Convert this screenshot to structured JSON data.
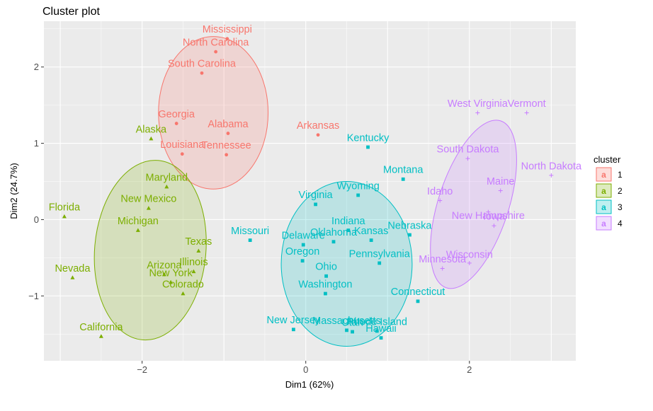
{
  "chart_data": {
    "type": "scatter",
    "title": "Cluster plot",
    "xlabel": "Dim1 (62%)",
    "ylabel": "Dim2 (24.7%)",
    "xlim": [
      -3.2,
      3.3
    ],
    "ylim": [
      -1.85,
      2.6
    ],
    "xticks": [
      -2,
      0,
      2
    ],
    "yticks": [
      -1,
      0,
      1,
      2
    ],
    "grid": true,
    "legend": {
      "title": "cluster",
      "position": "right",
      "entries": [
        {
          "label": "1",
          "glyph": "a",
          "color": "#F8766D",
          "fill": "#F8766D"
        },
        {
          "label": "2",
          "glyph": "a",
          "color": "#7CAE00",
          "fill": "#7CAE00"
        },
        {
          "label": "3",
          "glyph": "a",
          "color": "#00BFC4",
          "fill": "#00BFC4"
        },
        {
          "label": "4",
          "glyph": "a",
          "color": "#C77CFF",
          "fill": "#C77CFF"
        }
      ]
    },
    "ellipses": [
      {
        "cluster": "1",
        "cx": -1.13,
        "cy": 1.4,
        "rx": 0.67,
        "ry": 1.0,
        "angle": 0
      },
      {
        "cluster": "2",
        "cx": -1.9,
        "cy": -0.4,
        "rx": 0.68,
        "ry": 1.18,
        "angle": 5
      },
      {
        "cluster": "3",
        "cx": 0.5,
        "cy": -0.58,
        "rx": 0.8,
        "ry": 1.08,
        "angle": 0
      },
      {
        "cluster": "4",
        "cx": 2.05,
        "cy": 0.2,
        "rx": 0.43,
        "ry": 1.15,
        "angle": 18
      }
    ],
    "series": [
      {
        "name": "1",
        "color": "#F8766D",
        "marker": "circle",
        "points": [
          {
            "label": "Mississippi",
            "x": -0.96,
            "y": 2.37,
            "lx": -0.96,
            "ly": 2.45
          },
          {
            "label": "North Carolina",
            "x": -1.1,
            "y": 2.2,
            "lx": -1.1,
            "ly": 2.28
          },
          {
            "label": "South Carolina",
            "x": -1.27,
            "y": 1.92,
            "lx": -1.27,
            "ly": 2.0
          },
          {
            "label": "Georgia",
            "x": -1.58,
            "y": 1.26,
            "lx": -1.58,
            "ly": 1.34
          },
          {
            "label": "Alabama",
            "x": -0.95,
            "y": 1.13,
            "lx": -0.95,
            "ly": 1.21
          },
          {
            "label": "Arkansas",
            "x": 0.15,
            "y": 1.11,
            "lx": 0.15,
            "ly": 1.19
          },
          {
            "label": "Louisiana",
            "x": -1.51,
            "y": 0.86,
            "lx": -1.51,
            "ly": 0.94
          },
          {
            "label": "Tennessee",
            "x": -0.97,
            "y": 0.85,
            "lx": -0.97,
            "ly": 0.93
          }
        ]
      },
      {
        "name": "2",
        "color": "#7CAE00",
        "marker": "triangle",
        "points": [
          {
            "label": "Alaska",
            "x": -1.89,
            "y": 1.06,
            "lx": -1.89,
            "ly": 1.14
          },
          {
            "label": "Maryland",
            "x": -1.7,
            "y": 0.43,
            "lx": -1.7,
            "ly": 0.51
          },
          {
            "label": "Florida",
            "x": -2.95,
            "y": 0.04,
            "lx": -2.95,
            "ly": 0.12
          },
          {
            "label": "New Mexico",
            "x": -1.92,
            "y": 0.15,
            "lx": -1.92,
            "ly": 0.23
          },
          {
            "label": "Michigan",
            "x": -2.05,
            "y": -0.14,
            "lx": -2.05,
            "ly": -0.06
          },
          {
            "label": "Texas",
            "x": -1.31,
            "y": -0.41,
            "lx": -1.31,
            "ly": -0.33
          },
          {
            "label": "Illinois",
            "x": -1.37,
            "y": -0.68,
            "lx": -1.37,
            "ly": -0.6
          },
          {
            "label": "Nevada",
            "x": -2.85,
            "y": -0.76,
            "lx": -2.85,
            "ly": -0.68
          },
          {
            "label": "Arizona",
            "x": -1.73,
            "y": -0.72,
            "lx": -1.73,
            "ly": -0.64
          },
          {
            "label": "New York",
            "x": -1.65,
            "y": -0.82,
            "lx": -1.65,
            "ly": -0.74
          },
          {
            "label": "Colorado",
            "x": -1.5,
            "y": -0.97,
            "lx": -1.5,
            "ly": -0.89
          },
          {
            "label": "California",
            "x": -2.5,
            "y": -1.53,
            "lx": -2.5,
            "ly": -1.45
          }
        ]
      },
      {
        "name": "3",
        "color": "#00BFC4",
        "marker": "square",
        "points": [
          {
            "label": "Kentucky",
            "x": 0.76,
            "y": 0.95,
            "lx": 0.76,
            "ly": 1.03
          },
          {
            "label": "Montana",
            "x": 1.19,
            "y": 0.53,
            "lx": 1.19,
            "ly": 0.61
          },
          {
            "label": "Wyoming",
            "x": 0.64,
            "y": 0.32,
            "lx": 0.64,
            "ly": 0.4
          },
          {
            "label": "Virginia",
            "x": 0.12,
            "y": 0.2,
            "lx": 0.12,
            "ly": 0.28
          },
          {
            "label": "Indiana",
            "x": 0.52,
            "y": -0.14,
            "lx": 0.52,
            "ly": -0.06
          },
          {
            "label": "Missouri",
            "x": -0.68,
            "y": -0.27,
            "lx": -0.68,
            "ly": -0.19
          },
          {
            "label": "Delaware",
            "x": -0.03,
            "y": -0.33,
            "lx": -0.03,
            "ly": -0.25
          },
          {
            "label": "Oklahoma",
            "x": 0.34,
            "y": -0.29,
            "lx": 0.34,
            "ly": -0.21
          },
          {
            "label": "Kansas",
            "x": 0.8,
            "y": -0.27,
            "lx": 0.8,
            "ly": -0.19
          },
          {
            "label": "Nebraska",
            "x": 1.27,
            "y": -0.2,
            "lx": 1.27,
            "ly": -0.12
          },
          {
            "label": "Oregon",
            "x": -0.04,
            "y": -0.54,
            "lx": -0.04,
            "ly": -0.46
          },
          {
            "label": "Pennsylvania",
            "x": 0.9,
            "y": -0.57,
            "lx": 0.9,
            "ly": -0.49
          },
          {
            "label": "Ohio",
            "x": 0.25,
            "y": -0.74,
            "lx": 0.25,
            "ly": -0.66
          },
          {
            "label": "Washington",
            "x": 0.24,
            "y": -0.97,
            "lx": 0.24,
            "ly": -0.89
          },
          {
            "label": "Connecticut",
            "x": 1.37,
            "y": -1.07,
            "lx": 1.37,
            "ly": -0.99
          },
          {
            "label": "New Jersey",
            "x": -0.15,
            "y": -1.44,
            "lx": -0.15,
            "ly": -1.36
          },
          {
            "label": "Massachusetts",
            "x": 0.5,
            "y": -1.45,
            "lx": 0.5,
            "ly": -1.37
          },
          {
            "label": "Utah",
            "x": 0.57,
            "y": -1.47,
            "lx": 0.57,
            "ly": -1.39
          },
          {
            "label": "Rhode Island",
            "x": 0.87,
            "y": -1.46,
            "lx": 0.87,
            "ly": -1.38
          },
          {
            "label": "Hawaii",
            "x": 0.92,
            "y": -1.55,
            "lx": 0.92,
            "ly": -1.47
          }
        ]
      },
      {
        "name": "4",
        "color": "#C77CFF",
        "marker": "plus",
        "points": [
          {
            "label": "West Virginia",
            "x": 2.1,
            "y": 1.4,
            "lx": 2.1,
            "ly": 1.48
          },
          {
            "label": "Vermont",
            "x": 2.7,
            "y": 1.4,
            "lx": 2.7,
            "ly": 1.48
          },
          {
            "label": "South Dakota",
            "x": 1.98,
            "y": 0.8,
            "lx": 1.98,
            "ly": 0.88
          },
          {
            "label": "North Dakota",
            "x": 3.0,
            "y": 0.58,
            "lx": 3.0,
            "ly": 0.66
          },
          {
            "label": "Maine",
            "x": 2.38,
            "y": 0.38,
            "lx": 2.38,
            "ly": 0.46
          },
          {
            "label": "Idaho",
            "x": 1.64,
            "y": 0.25,
            "lx": 1.64,
            "ly": 0.33
          },
          {
            "label": "New Hampshire",
            "x": 2.23,
            "y": 0.1,
            "lx": 2.23,
            "ly": 0.01
          },
          {
            "label": "Iowa",
            "x": 2.3,
            "y": -0.08,
            "lx": 2.3,
            "ly": -0.0
          },
          {
            "label": "Wisconsin",
            "x": 2.0,
            "y": -0.57,
            "lx": 2.0,
            "ly": -0.5
          },
          {
            "label": "Minnesota",
            "x": 1.67,
            "y": -0.64,
            "lx": 1.67,
            "ly": -0.56
          }
        ]
      }
    ]
  }
}
